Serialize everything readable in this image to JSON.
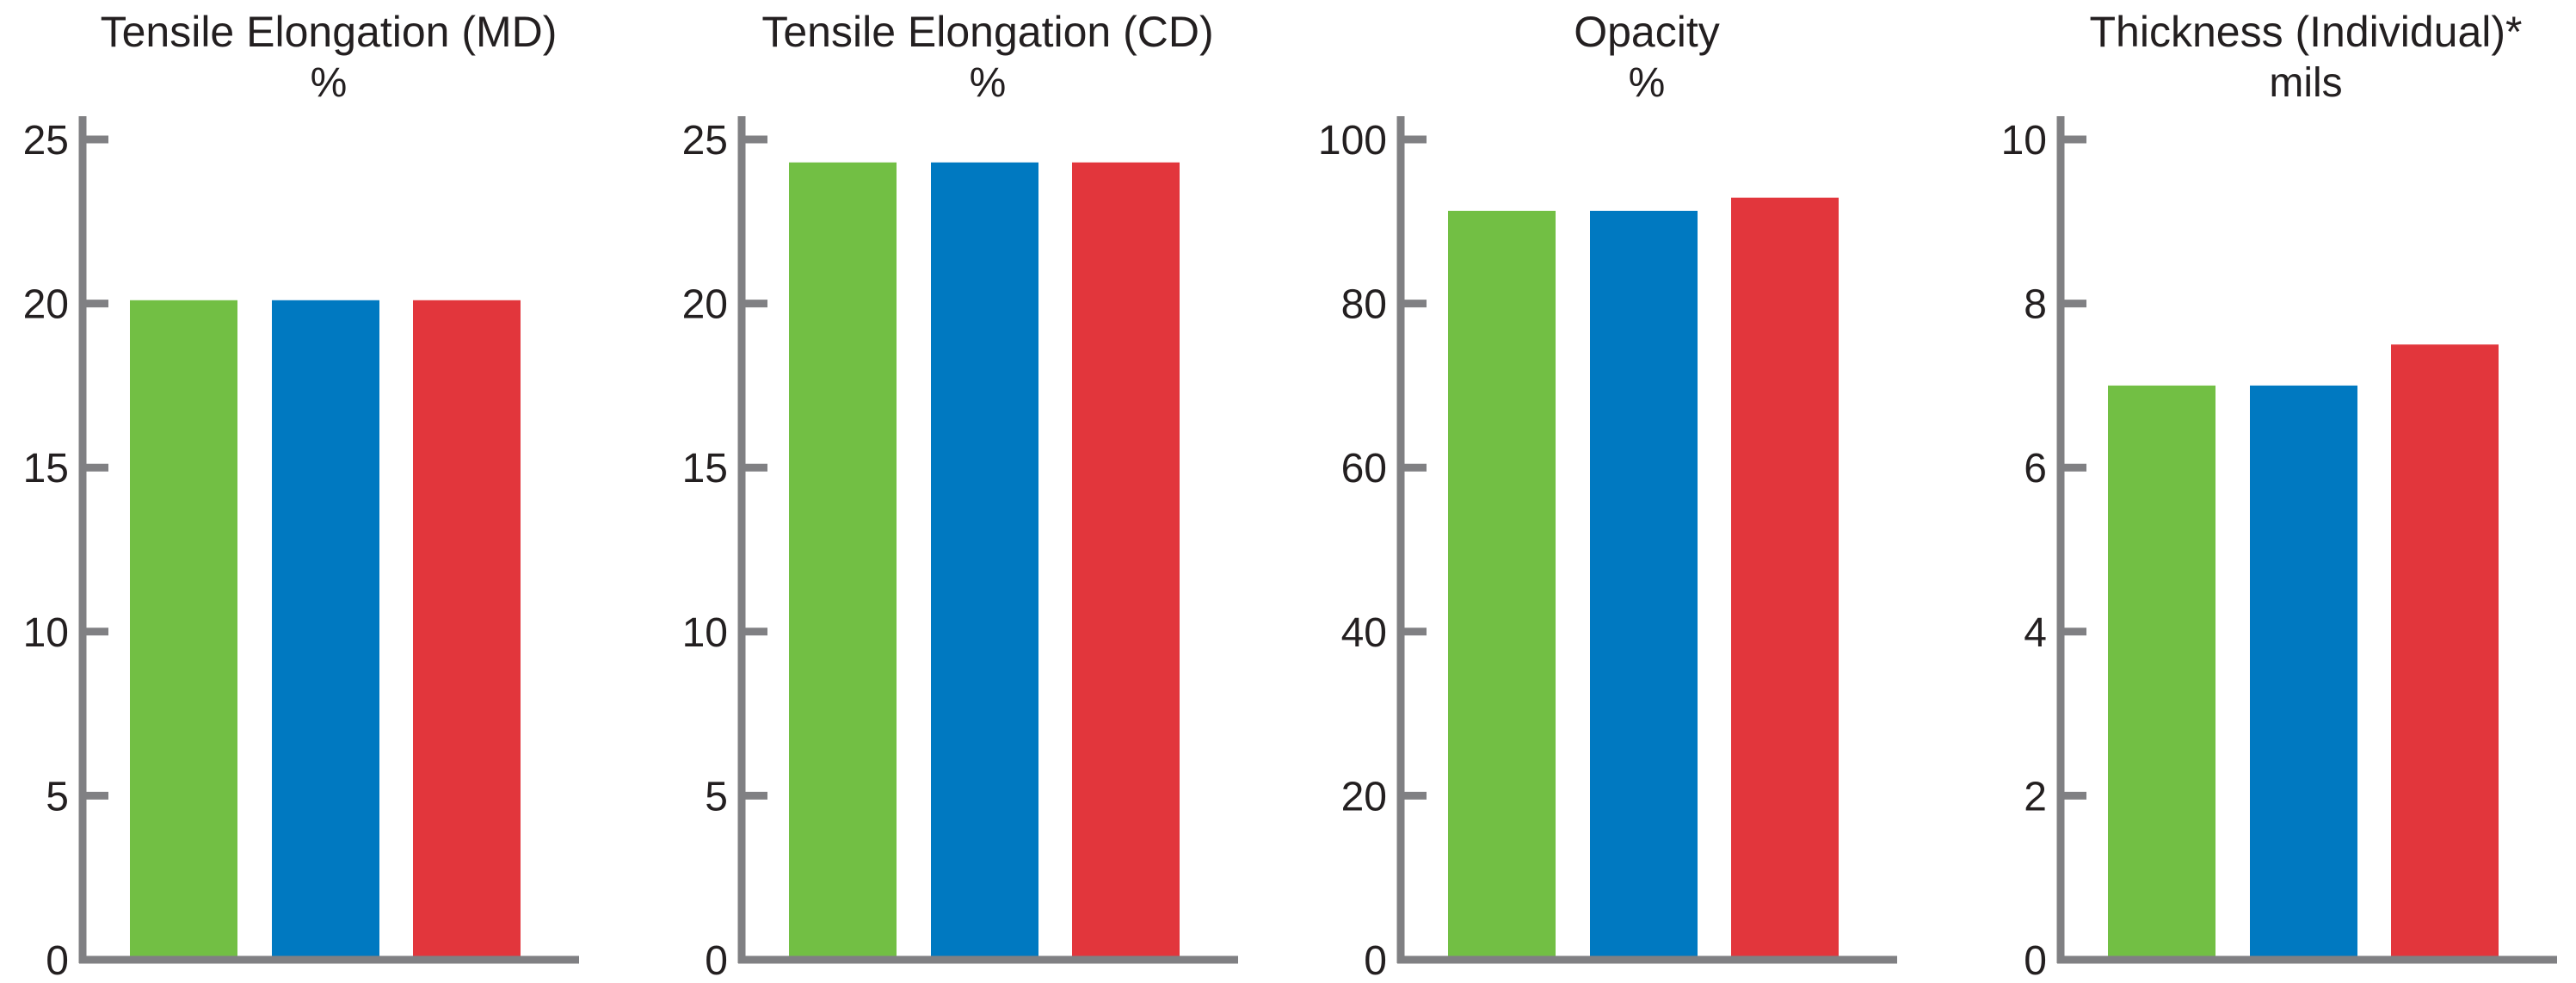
{
  "colors": {
    "axis": "#808083",
    "text": "#231f20",
    "series": [
      "#72bf44",
      "#0079c1",
      "#e2363c"
    ]
  },
  "chart_data": [
    {
      "type": "bar",
      "title": "Tensile Elongation (MD)",
      "subtitle": "%",
      "yticks": [
        "0",
        "5",
        "10",
        "15",
        "20",
        "25"
      ],
      "ylim": [
        0,
        25
      ],
      "values": [
        20.1,
        20.1,
        20.1
      ]
    },
    {
      "type": "bar",
      "title": "Tensile Elongation (CD)",
      "subtitle": "%",
      "yticks": [
        "0",
        "5",
        "10",
        "15",
        "20",
        "25"
      ],
      "ylim": [
        0,
        25
      ],
      "values": [
        24.3,
        24.3,
        24.3
      ]
    },
    {
      "type": "bar",
      "title": "Opacity",
      "subtitle": "%",
      "yticks": [
        "0",
        "20",
        "40",
        "60",
        "80",
        "100"
      ],
      "ylim": [
        0,
        100
      ],
      "values": [
        91.3,
        91.3,
        92.9
      ]
    },
    {
      "type": "bar",
      "title": "Thickness (Individual)*",
      "subtitle": "mils",
      "yticks": [
        "0",
        "2",
        "4",
        "6",
        "8",
        "10"
      ],
      "ylim": [
        0,
        10
      ],
      "values": [
        7.0,
        7.0,
        7.5
      ]
    }
  ]
}
